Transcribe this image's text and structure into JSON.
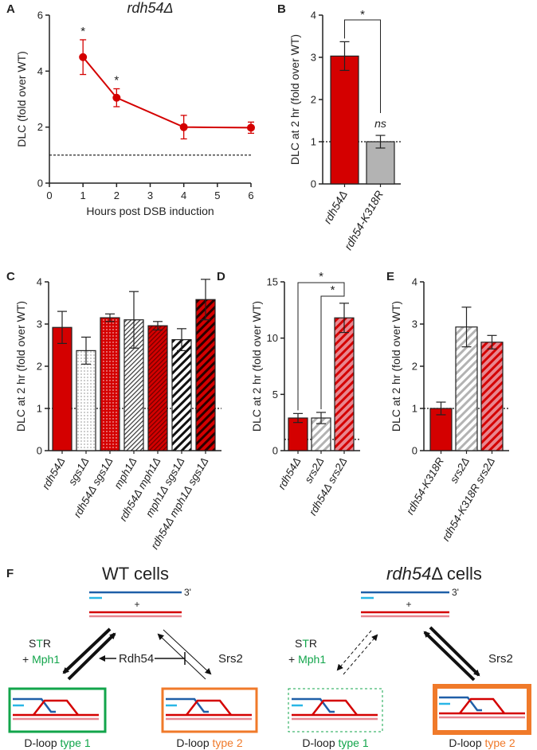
{
  "colors": {
    "red": "#d40000",
    "gray": "#b3b3b3",
    "blue": "#1f5fa8",
    "green": "#12a54b",
    "orange": "#f07a2a",
    "cyan": "#29b6e6",
    "pink": "#e8868f"
  },
  "chart_data": [
    {
      "panel": "A",
      "type": "line",
      "title": "rdh54Δ",
      "xlabel": "Hours post DSB induction",
      "ylabel": "DLC (fold over WT)",
      "x": [
        1,
        2,
        4,
        6
      ],
      "y": [
        4.5,
        3.05,
        2.0,
        1.98
      ],
      "err": [
        0.62,
        0.32,
        0.42,
        0.2
      ],
      "sig": [
        "*",
        "*",
        "",
        ""
      ],
      "xlim": [
        0,
        6
      ],
      "ylim": [
        0,
        6
      ],
      "xticks": [
        "0",
        "1",
        "2",
        "3",
        "4",
        "5",
        "6"
      ],
      "yticks": [
        "0",
        "2",
        "4",
        "6"
      ],
      "reference_line": 1
    },
    {
      "panel": "B",
      "type": "bar",
      "ylabel": "DLC at 2 hr (fold over WT)",
      "categories": [
        "rdh54Δ",
        "rdh54-K318R"
      ],
      "values": [
        3.03,
        1.0
      ],
      "err": [
        0.34,
        0.15
      ],
      "ylim": [
        0,
        4
      ],
      "yticks": [
        "0",
        "1",
        "2",
        "3",
        "4"
      ],
      "annotations": {
        "comparison": "*",
        "ns": "ns"
      },
      "reference_line": 1
    },
    {
      "panel": "C",
      "type": "bar",
      "ylabel": "DLC at 2 hr (fold over WT)",
      "categories": [
        "rdh54Δ",
        "sgs1Δ",
        "rdh54Δ sgs1Δ",
        "mph1Δ",
        "rdh54Δ mph1Δ",
        "mph1Δ sgs1Δ",
        "rdh54Δ mph1Δ sgs1Δ"
      ],
      "values": [
        2.92,
        2.37,
        3.15,
        3.1,
        2.96,
        2.63,
        3.58
      ],
      "err": [
        0.38,
        0.32,
        0.09,
        0.67,
        0.1,
        0.26,
        0.48
      ],
      "ylim": [
        0,
        4
      ],
      "yticks": [
        "0",
        "1",
        "2",
        "3",
        "4"
      ],
      "reference_line": 1
    },
    {
      "panel": "D",
      "type": "bar",
      "ylabel": "DLC at 2 hr (fold over WT)",
      "categories": [
        "rdh54Δ",
        "srs2Δ",
        "rdh54Δ srs2Δ"
      ],
      "values": [
        2.9,
        2.9,
        11.8
      ],
      "err": [
        0.4,
        0.5,
        1.3
      ],
      "ylim": [
        0,
        15
      ],
      "yticks": [
        "0",
        "5",
        "10",
        "15"
      ],
      "annotations": {
        "comparison1": "*",
        "comparison2": "*"
      },
      "reference_line": 1
    },
    {
      "panel": "E",
      "type": "bar",
      "ylabel": "DLC at 2 hr (fold over WT)",
      "categories": [
        "rdh54-K318R",
        "srs2Δ",
        "rdh54-K318R srs2Δ"
      ],
      "values": [
        1.0,
        2.93,
        2.57
      ],
      "err": [
        0.15,
        0.47,
        0.16
      ],
      "ylim": [
        0,
        4
      ],
      "yticks": [
        "0",
        "1",
        "2",
        "3",
        "4"
      ],
      "reference_line": 1
    }
  ],
  "panel_labels": {
    "a": "A",
    "b": "B",
    "c": "C",
    "d": "D",
    "e": "E",
    "f": "F"
  },
  "diagram": {
    "wt_title": "WT cells",
    "rdh_title_italic": "rdh54",
    "rdh_title_rest": "Δ cells",
    "three_prime": "3'",
    "plus": "+",
    "str_s": "S",
    "str_t": "T",
    "str_r": "R",
    "mph1_prefix": "+ ",
    "mph1": "Mph1",
    "rdh54": "Rdh54",
    "srs2": "Srs2",
    "dloop": "D-loop",
    "type1": "type 1",
    "type2": "type 2"
  }
}
